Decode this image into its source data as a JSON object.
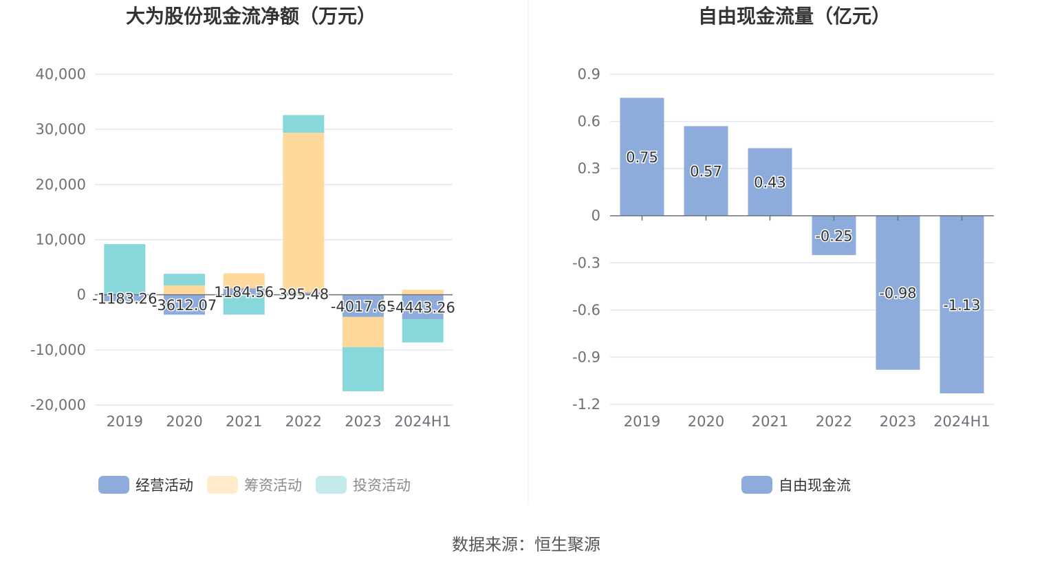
{
  "chart_data": [
    {
      "type": "bar",
      "stacked": true,
      "title": "大为股份现金流净额（万元）",
      "categories": [
        "2019",
        "2020",
        "2021",
        "2022",
        "2023",
        "2024H1"
      ],
      "y_ticks": [
        "40,000",
        "30,000",
        "20,000",
        "10,000",
        "0",
        "-10,000",
        "-20,000"
      ],
      "ylim": [
        -20000,
        40000
      ],
      "grid": true,
      "legend_position": "bottom",
      "series": [
        {
          "name": "经营活动",
          "color": "#8eacdb",
          "values": [
            -1183.26,
            -3612.07,
            1184.56,
            395.48,
            -4017.65,
            -4443.26
          ]
        },
        {
          "name": "筹资活动",
          "color": "#fed99b",
          "values": [
            -300,
            1700,
            2700,
            29000,
            -5500,
            900
          ]
        },
        {
          "name": "投资活动",
          "color": "#88d7da",
          "values": [
            9200,
            2100,
            -3600,
            3200,
            -8000,
            -4200
          ]
        }
      ],
      "data_labels": [
        "-1183.26",
        "-3612.07",
        "1184.56",
        "395.48",
        "-4017.65",
        "-4443.26"
      ]
    },
    {
      "type": "bar",
      "title": "自由现金流量（亿元）",
      "categories": [
        "2019",
        "2020",
        "2021",
        "2022",
        "2023",
        "2024H1"
      ],
      "y_ticks": [
        "0.9",
        "0.6",
        "0.3",
        "0",
        "-0.3",
        "-0.6",
        "-0.9",
        "-1.2"
      ],
      "ylim": [
        -1.2,
        0.9
      ],
      "grid": true,
      "legend_position": "bottom",
      "series": [
        {
          "name": "自由现金流",
          "color": "#8eacdb",
          "values": [
            0.75,
            0.57,
            0.43,
            -0.25,
            -0.98,
            -1.13
          ]
        }
      ],
      "data_labels": [
        "0.75",
        "0.57",
        "0.43",
        "-0.25",
        "-0.98",
        "-1.13"
      ]
    }
  ],
  "source": "数据来源：恒生聚源"
}
